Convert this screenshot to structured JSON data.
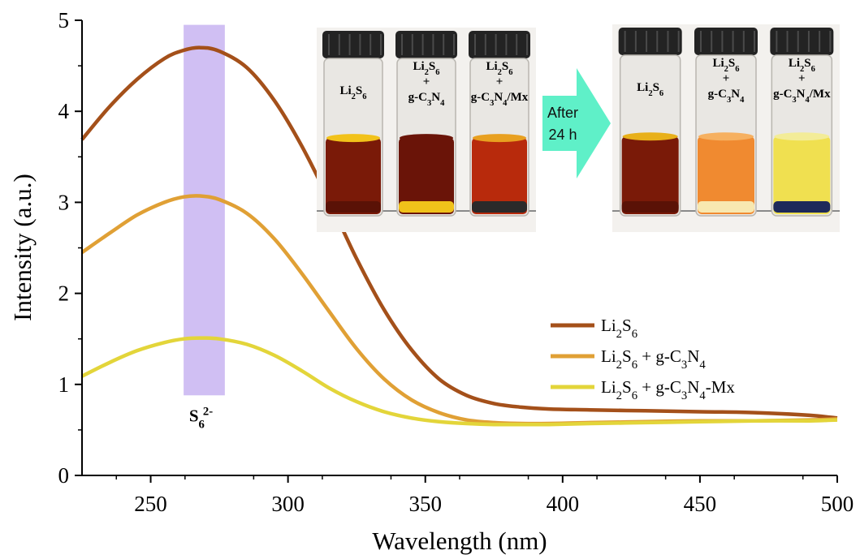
{
  "chart_data": {
    "type": "line",
    "xlabel": "Wavelength (nm)",
    "ylabel": "Intensity (a.u.)",
    "xlim": [
      225,
      500
    ],
    "ylim": [
      0,
      5
    ],
    "xticks": [
      "250",
      "300",
      "350",
      "400",
      "450",
      "500"
    ],
    "yticks": [
      "0",
      "1",
      "2",
      "3",
      "4",
      "5"
    ],
    "grid": false,
    "legend_position": "right-middle",
    "highlight_band": {
      "x_from": 262,
      "x_to": 277,
      "y_from": 0.88,
      "y_to": 4.95,
      "label_base": "S",
      "label_sub": "6",
      "label_sup": "2-",
      "color": "#cbb8f2"
    },
    "x": [
      225,
      235,
      245,
      255,
      262,
      268,
      275,
      285,
      295,
      305,
      315,
      325,
      335,
      345,
      355,
      365,
      375,
      385,
      395,
      410,
      430,
      450,
      470,
      490,
      500
    ],
    "series": [
      {
        "name": "Li2S6",
        "color": "#a4501a",
        "values": [
          3.69,
          4.05,
          4.35,
          4.58,
          4.67,
          4.7,
          4.66,
          4.48,
          4.12,
          3.62,
          3.02,
          2.38,
          1.82,
          1.38,
          1.06,
          0.88,
          0.79,
          0.75,
          0.73,
          0.72,
          0.71,
          0.7,
          0.69,
          0.66,
          0.63
        ]
      },
      {
        "name": "Li2S6 + g-C3N4",
        "color": "#e0a035",
        "values": [
          2.45,
          2.66,
          2.86,
          3.0,
          3.06,
          3.07,
          3.03,
          2.88,
          2.6,
          2.22,
          1.8,
          1.39,
          1.06,
          0.83,
          0.69,
          0.61,
          0.58,
          0.57,
          0.57,
          0.58,
          0.59,
          0.6,
          0.6,
          0.61,
          0.62
        ]
      },
      {
        "name": "Li2S6 + g-C3N4-Mx",
        "color": "#e3d53a",
        "values": [
          1.09,
          1.24,
          1.37,
          1.46,
          1.5,
          1.51,
          1.5,
          1.44,
          1.32,
          1.15,
          0.96,
          0.81,
          0.7,
          0.63,
          0.59,
          0.57,
          0.56,
          0.56,
          0.56,
          0.57,
          0.58,
          0.59,
          0.6,
          0.6,
          0.61
        ]
      }
    ],
    "legend": [
      {
        "parts": [
          [
            "Li",
            ""
          ],
          [
            "2",
            "sub"
          ],
          [
            "S",
            ""
          ],
          [
            "6",
            "sub"
          ]
        ],
        "color": "#a4501a"
      },
      {
        "parts": [
          [
            "Li",
            ""
          ],
          [
            "2",
            "sub"
          ],
          [
            "S",
            ""
          ],
          [
            "6",
            "sub"
          ],
          [
            " + g-C",
            ""
          ],
          [
            "3",
            "sub"
          ],
          [
            "N",
            ""
          ],
          [
            "4",
            "sub"
          ]
        ],
        "color": "#e0a035"
      },
      {
        "parts": [
          [
            "Li",
            ""
          ],
          [
            "2",
            "sub"
          ],
          [
            "S",
            ""
          ],
          [
            "6",
            "sub"
          ],
          [
            " + g-C",
            ""
          ],
          [
            "3",
            "sub"
          ],
          [
            "N",
            ""
          ],
          [
            "4",
            "sub"
          ],
          [
            "-Mx",
            ""
          ]
        ],
        "color": "#e3d53a"
      }
    ]
  },
  "inset": {
    "arrow_text_line1": "After",
    "arrow_text_line2": "24 h",
    "arrow_color": "#5ff0c8",
    "before_vials": [
      {
        "label": [
          [
            [
              "Li",
              ""
            ],
            [
              "2",
              "sub"
            ],
            [
              "S",
              ""
            ],
            [
              "6",
              "sub"
            ]
          ]
        ],
        "liquid": "#7a1a08",
        "top": "#f2c21a",
        "bottom": "#5a1206"
      },
      {
        "label": [
          [
            [
              "Li",
              ""
            ],
            [
              "2",
              "sub"
            ],
            [
              "S",
              ""
            ],
            [
              "6",
              "sub"
            ]
          ],
          [
            [
              "+",
              ""
            ]
          ],
          [
            [
              "g-C",
              ""
            ],
            [
              "3",
              "sub"
            ],
            [
              "N",
              ""
            ],
            [
              "4",
              "sub"
            ]
          ]
        ],
        "liquid": "#6a1408",
        "top": "#6a1408",
        "bottom": "#f0c21a"
      },
      {
        "label": [
          [
            [
              "Li",
              ""
            ],
            [
              "2",
              "sub"
            ],
            [
              "S",
              ""
            ],
            [
              "6",
              "sub"
            ]
          ]
        ],
        "liquid": "#b82a0c",
        "top": "#e8a020",
        "bottom": "#2b2a2a",
        "extra": [
          [
            [
              "+",
              ""
            ]
          ],
          [
            [
              "g-C",
              ""
            ],
            [
              "3",
              "sub"
            ],
            [
              "N",
              ""
            ],
            [
              "4",
              "sub"
            ],
            [
              "/Mx",
              ""
            ]
          ]
        ]
      }
    ],
    "after_vials": [
      {
        "label": [
          [
            [
              "Li",
              ""
            ],
            [
              "2",
              "sub"
            ],
            [
              "S",
              ""
            ],
            [
              "6",
              "sub"
            ]
          ]
        ],
        "liquid": "#7a1a08",
        "top": "#e8b01a",
        "bottom": "#5a1206"
      },
      {
        "label": [
          [
            [
              "Li",
              ""
            ],
            [
              "2",
              "sub"
            ],
            [
              "S",
              ""
            ],
            [
              "6",
              "sub"
            ]
          ],
          [
            [
              "+",
              ""
            ]
          ],
          [
            [
              "g-C",
              ""
            ],
            [
              "3",
              "sub"
            ],
            [
              "N",
              ""
            ],
            [
              "4",
              "sub"
            ]
          ]
        ],
        "liquid": "#f08a30",
        "top": "#f6b060",
        "bottom": "#f8e8b0"
      },
      {
        "label": [
          [
            [
              "Li",
              ""
            ],
            [
              "2",
              "sub"
            ],
            [
              "S",
              ""
            ],
            [
              "6",
              "sub"
            ]
          ],
          [
            [
              "+",
              ""
            ]
          ],
          [
            [
              "g-C",
              ""
            ],
            [
              "3",
              "sub"
            ],
            [
              "N",
              ""
            ],
            [
              "4",
              "sub"
            ],
            [
              "/Mx",
              ""
            ]
          ]
        ],
        "liquid": "#f0e050",
        "top": "#f3ec98",
        "bottom": "#1e2a5a"
      }
    ]
  }
}
